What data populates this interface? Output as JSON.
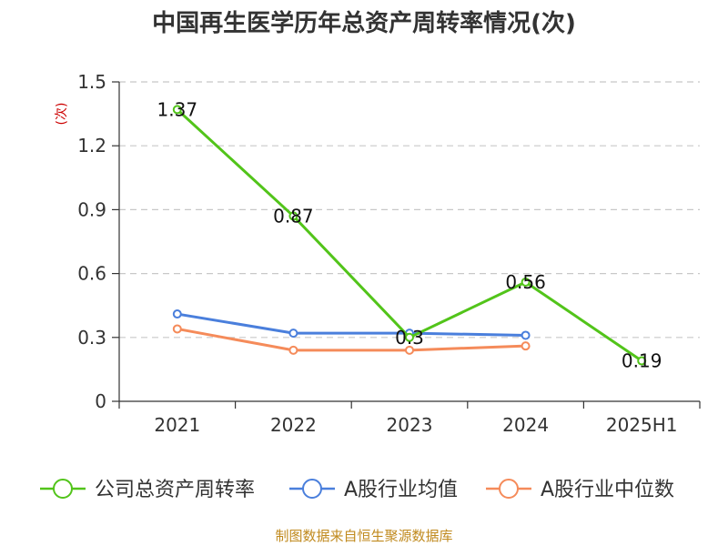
{
  "chart_data": {
    "type": "line",
    "title": "中国再生医学历年总资产周转率情况(次)",
    "ylabel": "(次)",
    "xlabel": "",
    "categories": [
      "2021",
      "2022",
      "2023",
      "2024",
      "2025H1"
    ],
    "ylim": [
      0,
      1.5
    ],
    "yticks": [
      0,
      0.3,
      0.6,
      0.9,
      1.2,
      1.5
    ],
    "ytick_labels": [
      "0",
      "0.3",
      "0.6",
      "0.9",
      "1.2",
      "1.5"
    ],
    "grid": true,
    "legend_position": "bottom",
    "series": [
      {
        "name": "公司总资产周转率",
        "color": "#52c41a",
        "values": [
          1.37,
          0.87,
          0.3,
          0.56,
          0.19
        ],
        "data_labels": [
          "1.37",
          "0.87",
          "0.3",
          "0.56",
          "0.19"
        ]
      },
      {
        "name": "A股行业均值",
        "color": "#4a7fdc",
        "values": [
          0.41,
          0.32,
          0.32,
          0.31,
          null
        ]
      },
      {
        "name": "A股行业中位数",
        "color": "#f58b5a",
        "values": [
          0.34,
          0.24,
          0.24,
          0.26,
          null
        ]
      }
    ]
  },
  "source": "制图数据来自恒生聚源数据库"
}
